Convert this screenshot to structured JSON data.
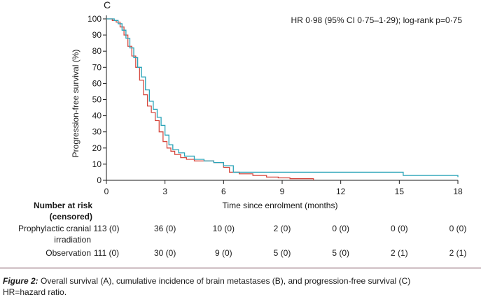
{
  "panel_label": "C",
  "annotation": "HR 0·98 (95% CI 0·75–1·29); log-rank p=0·75",
  "risk_table": {
    "heading_line1": "Number at risk",
    "heading_line2": "(censored)",
    "rows": [
      {
        "label_line1": "Prophylactic cranial",
        "label_line2": "irradiation",
        "values": [
          "113 (0)",
          "36 (0)",
          "10 (0)",
          "2 (0)",
          "0 (0)",
          "0 (0)",
          "0 (0)"
        ]
      },
      {
        "label_line1": "Observation",
        "label_line2": "",
        "values": [
          "111 (0)",
          "30 (0)",
          "9 (0)",
          "5 (0)",
          "5 (0)",
          "2 (1)",
          "2 (1)"
        ]
      }
    ]
  },
  "caption": {
    "figure_label": "Figure 2:",
    "title": " Overall survival (A), cumulative incidence of brain metastases (B), and progression-free survival (C)",
    "line2": "HR=hazard ratio."
  },
  "colors": {
    "pci": "#d6483e",
    "observation": "#2aa3b8"
  },
  "chart_data": {
    "type": "line",
    "step": true,
    "xlabel": "Time since enrolment (months)",
    "ylabel": "Progression-free survival (%)",
    "xlim": [
      0,
      18
    ],
    "ylim": [
      0,
      100
    ],
    "xticks": [
      0,
      3,
      6,
      9,
      12,
      15,
      18
    ],
    "yticks": [
      0,
      10,
      20,
      30,
      40,
      50,
      60,
      70,
      80,
      90,
      100
    ],
    "grid": false,
    "series": [
      {
        "x": [
          0,
          0.3,
          0.5,
          0.7,
          0.9,
          1.1,
          1.3,
          1.5,
          1.7,
          1.9,
          2.1,
          2.3,
          2.5,
          2.7,
          2.9,
          3.1,
          3.3,
          3.5,
          3.8,
          4.1,
          4.5,
          5.0,
          5.5,
          6.0,
          6.3,
          6.8,
          7.5,
          8.2,
          8.8,
          9.4,
          10.0,
          10.6
        ],
        "y": [
          100,
          99,
          98,
          95,
          90,
          83,
          77,
          70,
          62,
          53,
          46,
          42,
          37,
          30,
          24,
          20,
          18,
          16,
          14,
          13,
          12,
          12,
          11,
          8,
          5,
          4,
          3,
          2,
          1.5,
          1,
          1,
          0
        ]
      },
      {
        "x": [
          0,
          0.4,
          0.6,
          0.8,
          1.0,
          1.2,
          1.4,
          1.6,
          1.8,
          2.0,
          2.2,
          2.4,
          2.6,
          2.8,
          3.0,
          3.2,
          3.4,
          3.7,
          4.0,
          4.5,
          5.0,
          5.5,
          6.0,
          6.5,
          8.0,
          10.0,
          12.0,
          13.5,
          14.8,
          15.2,
          18.0
        ],
        "y": [
          100,
          99,
          97,
          93,
          88,
          82,
          76,
          70,
          64,
          56,
          49,
          44,
          39,
          34,
          28,
          22,
          19,
          17,
          15,
          13,
          12,
          11,
          9,
          5,
          5,
          5,
          5,
          5,
          5,
          3,
          2
        ]
      }
    ]
  }
}
